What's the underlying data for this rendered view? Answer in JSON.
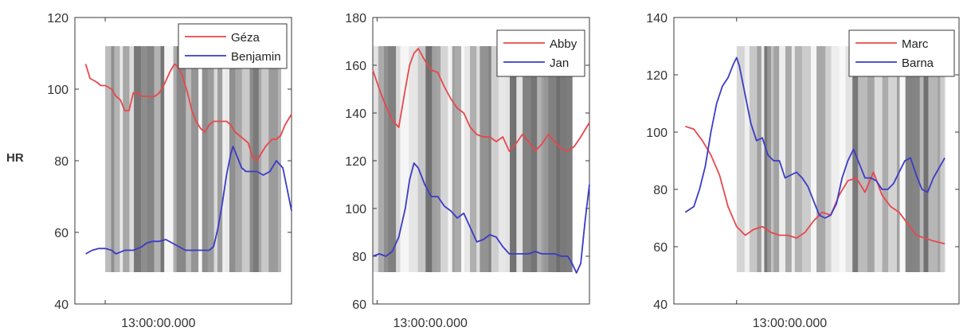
{
  "ylabel": "HR",
  "chart_data": [
    {
      "type": "line",
      "ylim": [
        40,
        120
      ],
      "yticks": [
        40,
        60,
        80,
        100,
        120
      ],
      "x_tick_label": "13:00:00.000",
      "x_range": [
        0,
        100
      ],
      "x_tick_at": 14,
      "shade_range": [
        14,
        95
      ],
      "legend": "top-right",
      "grid": false,
      "series": [
        {
          "name": "Géza",
          "color": "#e8474c",
          "x": [
            5,
            7,
            10,
            12,
            14,
            17,
            19,
            21,
            23,
            25,
            27,
            29,
            31,
            33,
            35,
            37,
            39,
            41,
            44,
            46,
            48,
            50,
            52,
            54,
            56,
            58,
            60,
            62,
            64,
            66,
            68,
            70,
            72,
            74,
            76,
            78,
            80,
            82,
            84,
            86,
            88,
            91,
            93,
            95,
            97,
            100
          ],
          "y": [
            107,
            103,
            102,
            101,
            101,
            100,
            98,
            97,
            94,
            94,
            99,
            99,
            98,
            98,
            98,
            98,
            99,
            101,
            105,
            107,
            106,
            103,
            99,
            94,
            91,
            89,
            88,
            90,
            91,
            91,
            91,
            91,
            90,
            88,
            87,
            86,
            85,
            81,
            80,
            82,
            84,
            86,
            86,
            87,
            90,
            93
          ]
        },
        {
          "name": "Benjamin",
          "color": "#3b3bc8",
          "x": [
            5,
            8,
            11,
            14,
            17,
            19,
            21,
            23,
            25,
            27,
            29,
            31,
            33,
            36,
            39,
            42,
            45,
            48,
            51,
            54,
            57,
            60,
            62,
            64,
            66,
            68,
            70,
            72,
            73,
            75,
            77,
            79,
            81,
            84,
            87,
            90,
            93,
            96,
            98,
            100
          ],
          "y": [
            54,
            55,
            55.5,
            55.5,
            55,
            54,
            54.5,
            55,
            55,
            55,
            55.5,
            56,
            57,
            57.5,
            57.5,
            58,
            57,
            56,
            55,
            55,
            55,
            55,
            55,
            56,
            61,
            68,
            76,
            82,
            84,
            81,
            78,
            77,
            77,
            77,
            76,
            77,
            80,
            78,
            72,
            66
          ]
        }
      ]
    },
    {
      "type": "line",
      "ylim": [
        60,
        180
      ],
      "yticks": [
        60,
        80,
        100,
        120,
        140,
        160,
        180
      ],
      "x_tick_label": "13:00:00.000",
      "x_range": [
        0,
        100
      ],
      "x_tick_at": 2,
      "shade_range": [
        0,
        92
      ],
      "legend": "top-right",
      "grid": false,
      "series": [
        {
          "name": "Abby",
          "color": "#e8474c",
          "x": [
            0,
            3,
            6,
            9,
            12,
            15,
            17,
            19,
            21,
            24,
            27,
            30,
            33,
            36,
            39,
            42,
            45,
            48,
            51,
            54,
            57,
            60,
            63,
            66,
            69,
            72,
            75,
            78,
            81,
            84,
            87,
            90,
            93,
            96,
            100
          ],
          "y": [
            158,
            150,
            143,
            137,
            134,
            150,
            160,
            165,
            167,
            162,
            158,
            157,
            151,
            146,
            142,
            140,
            134,
            131,
            130,
            130,
            128,
            130,
            124,
            127,
            131,
            128,
            124,
            127,
            131,
            128,
            125,
            124,
            126,
            130,
            136
          ]
        },
        {
          "name": "Jan",
          "color": "#3b3bc8",
          "x": [
            0,
            3,
            6,
            9,
            12,
            15,
            17,
            19,
            21,
            24,
            27,
            30,
            33,
            36,
            39,
            42,
            45,
            48,
            51,
            54,
            57,
            60,
            63,
            66,
            69,
            72,
            75,
            78,
            81,
            84,
            87,
            90,
            92,
            94,
            96,
            98,
            100
          ],
          "y": [
            80,
            81,
            80,
            82,
            88,
            100,
            112,
            119,
            117,
            110,
            105,
            105,
            101,
            99,
            96,
            98,
            92,
            86,
            87,
            89,
            88,
            84,
            81,
            81,
            81,
            81,
            82,
            81,
            81,
            81,
            80,
            80,
            77,
            73,
            77,
            95,
            110
          ]
        }
      ]
    },
    {
      "type": "line",
      "ylim": [
        40,
        140
      ],
      "yticks": [
        40,
        60,
        80,
        100,
        120,
        140
      ],
      "x_tick_label": "13:00:00.000",
      "x_range": [
        0,
        100
      ],
      "x_tick_at": 22,
      "shade_range": [
        22,
        95
      ],
      "legend": "top-right",
      "grid": false,
      "series": [
        {
          "name": "Marc",
          "color": "#e8474c",
          "x": [
            4,
            7,
            10,
            13,
            16,
            19,
            22,
            25,
            28,
            31,
            34,
            37,
            40,
            43,
            46,
            49,
            52,
            55,
            58,
            61,
            64,
            67,
            70,
            73,
            76,
            79,
            82,
            85,
            88,
            91,
            95
          ],
          "y": [
            102,
            101,
            97,
            92,
            85,
            74,
            67,
            64,
            66,
            67,
            65,
            64,
            64,
            63,
            65,
            69,
            72,
            71,
            78,
            83,
            84,
            79,
            86,
            78,
            74,
            72,
            68,
            64,
            63,
            62,
            61
          ]
        },
        {
          "name": "Barna",
          "color": "#3b3bc8",
          "x": [
            4,
            7,
            9,
            11,
            13,
            15,
            17,
            19,
            21,
            22,
            23,
            25,
            27,
            29,
            31,
            33,
            35,
            37,
            39,
            41,
            43,
            45,
            47,
            49,
            51,
            53,
            55,
            57,
            59,
            61,
            63,
            65,
            67,
            69,
            71,
            73,
            75,
            77,
            79,
            81,
            83,
            85,
            87,
            89,
            91,
            95
          ],
          "y": [
            72,
            74,
            80,
            88,
            100,
            110,
            116,
            119,
            124,
            126,
            123,
            113,
            103,
            97,
            98,
            92,
            90,
            90,
            84,
            85,
            86,
            84,
            81,
            76,
            71,
            70,
            71,
            75,
            84,
            90,
            94,
            89,
            84,
            84,
            83,
            80,
            80,
            82,
            86,
            90,
            91,
            85,
            80,
            79,
            84,
            91
          ]
        }
      ]
    }
  ]
}
